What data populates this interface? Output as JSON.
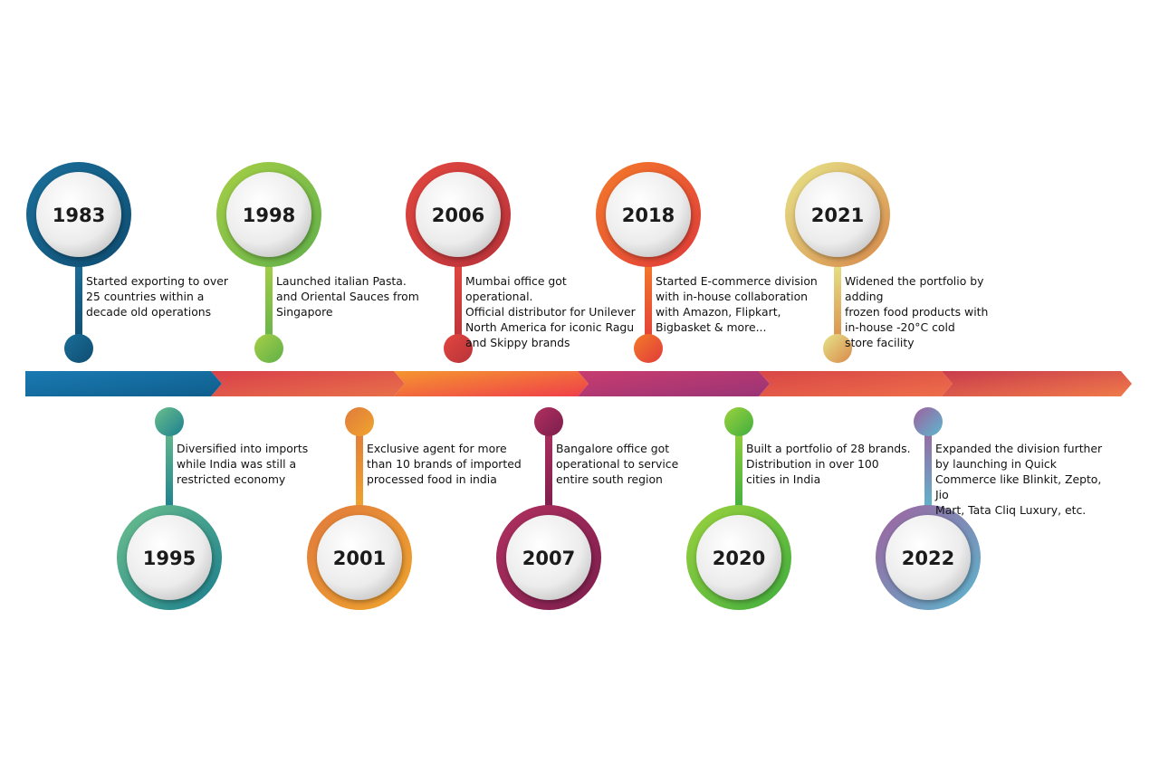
{
  "milestones": [
    {
      "year": "1983",
      "position": "top",
      "text": "Started exporting to over\n25 countries within a\ndecade old operations",
      "colors": [
        "#1a6f9a",
        "#0f4d72"
      ]
    },
    {
      "year": "1995",
      "position": "bottom",
      "text": "Diversified into imports\nwhile India was still a\nrestricted economy",
      "colors": [
        "#6cbf8c",
        "#1a7f8f"
      ]
    },
    {
      "year": "1998",
      "position": "top",
      "text": "Launched italian Pasta.\nand Oriental Sauces from\nSingapore",
      "colors": [
        "#a7cf45",
        "#5fb04a"
      ]
    },
    {
      "year": "2001",
      "position": "bottom",
      "text": "Exclusive agent for more\nthan 10 brands of imported\nprocessed food in india",
      "colors": [
        "#e07a3c",
        "#f0a52e"
      ]
    },
    {
      "year": "2006",
      "position": "top",
      "text": "Mumbai office got operational.\nOfficial distributor for Unilever\nNorth America for iconic Ragu\nand Skippy brands",
      "colors": [
        "#e2473f",
        "#b8323a"
      ]
    },
    {
      "year": "2007",
      "position": "bottom",
      "text": "Bangalore office got\noperational to service\nentire south region",
      "colors": [
        "#b0305f",
        "#7c1e4d"
      ]
    },
    {
      "year": "2018",
      "position": "top",
      "text": "Started E-commerce division\nwith in-house collaboration\nwith Amazon, Flipkart,\nBigbasket & more...",
      "colors": [
        "#f47b2a",
        "#e03a3a"
      ]
    },
    {
      "year": "2020",
      "position": "bottom",
      "text": "Built a portfolio of 28 brands.\nDistribution in over 100\ncities in India",
      "colors": [
        "#9cd23d",
        "#3fae3f"
      ]
    },
    {
      "year": "2021",
      "position": "top",
      "text": "Widened the portfolio by adding\nfrozen food products with\nin-house -20°C cold\nstore facility",
      "colors": [
        "#e6e58a",
        "#d9884a"
      ]
    },
    {
      "year": "2022",
      "position": "bottom",
      "text": "Expanded the division further\nby launching in Quick\nCommerce like Blinkit, Zepto, Jio\nMart, Tata Cliq Luxury, etc.",
      "colors": [
        "#a0609e",
        "#5bb8cf"
      ]
    }
  ],
  "arrow_segments": [
    {
      "from": "#1a7ab3",
      "to": "#0f5e8c"
    },
    {
      "from": "#d9404a",
      "to": "#e8704a"
    },
    {
      "from": "#f5962f",
      "to": "#ef3f4a"
    },
    {
      "from": "#c83c6e",
      "to": "#9a3476"
    },
    {
      "from": "#d84646",
      "to": "#ee6e4a"
    },
    {
      "from": "#c83c4c",
      "to": "#f07a4a"
    }
  ]
}
